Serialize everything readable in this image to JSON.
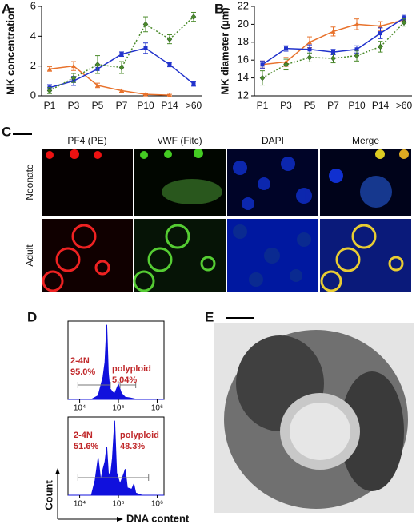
{
  "panel_labels": [
    "A",
    "B",
    "C",
    "D",
    "E"
  ],
  "chart_data": [
    {
      "type": "line",
      "ylabel": "MK concentration",
      "categories": [
        "P1",
        "P3",
        "P5",
        "P7",
        "P10",
        "P14",
        ">60"
      ],
      "ylim": [
        0,
        6
      ],
      "yticks": [
        0,
        2,
        4,
        6
      ],
      "series": [
        {
          "color": "#e8722c",
          "style": "solid",
          "marker": "triangle",
          "values": [
            1.8,
            2.0,
            0.7,
            0.35,
            0.1,
            0.05,
            null
          ],
          "errors": [
            0.15,
            0.3,
            0.15,
            0.1,
            0.05,
            0.05,
            null
          ]
        },
        {
          "color": "#2233cc",
          "style": "solid",
          "marker": "square",
          "values": [
            0.55,
            1.0,
            1.8,
            2.8,
            3.2,
            2.1,
            0.8
          ],
          "errors": [
            0.2,
            0.3,
            0.3,
            0.15,
            0.35,
            0.15,
            0.15
          ]
        },
        {
          "color": "#4a8a2a",
          "style": "dotted",
          "marker": "diamond",
          "values": [
            0.35,
            1.2,
            2.1,
            1.9,
            4.8,
            3.8,
            5.3
          ],
          "errors": [
            0.2,
            0.3,
            0.6,
            0.4,
            0.5,
            0.3,
            0.3
          ]
        }
      ]
    },
    {
      "type": "line",
      "ylabel": "MK diameter (µm)",
      "categories": [
        "P1",
        "P3",
        "P5",
        "P7",
        "P10",
        "P14",
        ">60"
      ],
      "ylim": [
        12,
        22
      ],
      "yticks": [
        12,
        14,
        16,
        18,
        20,
        22
      ],
      "series": [
        {
          "color": "#e8722c",
          "style": "solid",
          "marker": "triangle",
          "values": [
            15.5,
            15.8,
            18.0,
            19.2,
            20.0,
            19.8,
            20.5
          ],
          "errors": [
            0.4,
            0.5,
            0.6,
            0.5,
            0.6,
            0.5,
            0.3
          ]
        },
        {
          "color": "#2233cc",
          "style": "solid",
          "marker": "square",
          "values": [
            15.5,
            17.3,
            17.2,
            16.9,
            17.2,
            19.0,
            20.7
          ],
          "errors": [
            0.4,
            0.3,
            0.5,
            0.3,
            0.4,
            0.6,
            0.3
          ]
        },
        {
          "color": "#4a8a2a",
          "style": "dotted",
          "marker": "diamond",
          "values": [
            14.0,
            15.5,
            16.3,
            16.2,
            16.5,
            17.5,
            20.2
          ],
          "errors": [
            0.8,
            0.6,
            0.5,
            0.5,
            0.6,
            0.6,
            0.4
          ]
        }
      ]
    },
    {
      "type": "area",
      "xscale": "log",
      "color": "#1010dd",
      "xlim": [
        5000,
        1500000
      ],
      "ylim": [
        0,
        1.05
      ],
      "xticks": [
        {
          "value": 10000,
          "label": "10⁴"
        },
        {
          "value": 100000,
          "label": "10⁵"
        },
        {
          "value": 1000000,
          "label": "10⁶"
        }
      ],
      "x": [
        5000,
        20000,
        30000,
        40000,
        45000,
        50000,
        55000,
        60000,
        70000,
        80000,
        100000,
        120000,
        150000,
        200000,
        300000,
        1500000
      ],
      "values": [
        0,
        0,
        0.05,
        0.3,
        0.5,
        1.0,
        0.35,
        0.15,
        0.1,
        0.08,
        0.2,
        0.08,
        0.03,
        0.02,
        0,
        0
      ],
      "gates": [
        [
          9000,
          62000
        ],
        [
          110000,
          280000
        ]
      ],
      "annotations": [
        "2-4N",
        "95.0%",
        "polyploid",
        "5.04%"
      ]
    },
    {
      "type": "area",
      "xscale": "log",
      "color": "#1010dd",
      "xlim": [
        5000,
        1500000
      ],
      "ylim": [
        0,
        1.05
      ],
      "xticks": [
        {
          "value": 10000,
          "label": "10⁴"
        },
        {
          "value": 100000,
          "label": "10⁵"
        },
        {
          "value": 1000000,
          "label": "10⁶"
        }
      ],
      "x": [
        5000,
        20000,
        25000,
        30000,
        35000,
        40000,
        45000,
        50000,
        55000,
        62000,
        70000,
        80000,
        90000,
        110000,
        140000,
        150000,
        170000,
        220000,
        250000,
        280000,
        400000,
        1500000
      ],
      "values": [
        0,
        0,
        0.2,
        0.5,
        0.2,
        0.35,
        0.45,
        0.65,
        0.3,
        0.25,
        0.5,
        1.0,
        0.3,
        0.15,
        0.3,
        0.35,
        0.1,
        0.08,
        0.15,
        0.03,
        0,
        0
      ],
      "gates": [
        [
          9000,
          600000
        ]
      ],
      "annotations": [
        "2-4N",
        "51.6%",
        "polyploid",
        "48.3%"
      ],
      "ylabel": "Count",
      "xlabel": "DNA content"
    }
  ],
  "panel_c": {
    "columns": [
      "PF4 (PE)",
      "vWF (Fitc)",
      "DAPI",
      "Merge"
    ],
    "rows": [
      "Neonate",
      "Adult"
    ]
  }
}
